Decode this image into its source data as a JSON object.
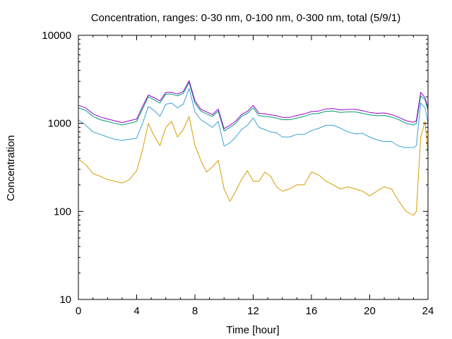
{
  "chart_data": {
    "type": "line",
    "title": "Concentration, ranges: 0-30 nm, 0-100 nm, 0-300 nm, total (5/9/1)",
    "xlabel": "Time [hour]",
    "ylabel": "Concentration",
    "xlim": [
      0,
      24
    ],
    "ylim": [
      10,
      10000
    ],
    "yscale": "log",
    "x_ticks": [
      0,
      4,
      8,
      12,
      16,
      20,
      24
    ],
    "x_tick_labels": [
      "0",
      "4",
      "8",
      "12",
      "16",
      "20",
      "24"
    ],
    "y_ticks": [
      10,
      100,
      1000,
      10000
    ],
    "y_tick_labels": [
      "10",
      "100",
      "1000",
      "10000"
    ],
    "grid": false,
    "legend": "none",
    "series": [
      {
        "color": "#d89c00",
        "x": [
          0,
          0.5,
          1,
          1.5,
          2,
          2.5,
          3,
          3.5,
          4,
          4.4,
          4.8,
          5.2,
          5.6,
          6,
          6.4,
          6.8,
          7.2,
          7.6,
          8,
          8.4,
          8.8,
          9.2,
          9.6,
          10,
          10.4,
          10.8,
          11.2,
          11.6,
          12,
          12.4,
          12.8,
          13.2,
          13.6,
          14,
          14.5,
          15,
          15.5,
          16,
          16.5,
          17,
          17.5,
          18,
          18.5,
          19,
          19.5,
          20,
          20.5,
          21,
          21.5,
          22,
          22.5,
          23,
          23.2,
          23.5,
          23.8,
          24
        ],
        "y": [
          390,
          340,
          270,
          250,
          230,
          220,
          210,
          230,
          290,
          500,
          1000,
          720,
          560,
          900,
          1050,
          700,
          850,
          1200,
          560,
          380,
          280,
          320,
          380,
          180,
          130,
          170,
          230,
          290,
          220,
          220,
          280,
          250,
          190,
          170,
          180,
          200,
          200,
          280,
          260,
          220,
          200,
          180,
          190,
          180,
          170,
          150,
          170,
          190,
          180,
          130,
          100,
          90,
          100,
          700,
          1050,
          450
        ]
      },
      {
        "color": "#3aa0d8",
        "x": [
          0,
          0.5,
          1,
          1.5,
          2,
          2.5,
          3,
          3.5,
          4,
          4.4,
          4.8,
          5.2,
          5.6,
          6,
          6.4,
          6.8,
          7.2,
          7.6,
          8,
          8.4,
          8.8,
          9.2,
          9.6,
          10,
          10.4,
          10.8,
          11.2,
          11.6,
          12,
          12.4,
          12.8,
          13.2,
          13.6,
          14,
          14.5,
          15,
          15.5,
          16,
          16.5,
          17,
          17.5,
          18,
          18.5,
          19,
          19.5,
          20,
          20.5,
          21,
          21.5,
          22,
          22.5,
          23,
          23.2,
          23.5,
          23.8,
          24
        ],
        "y": [
          1100,
          950,
          800,
          750,
          700,
          660,
          640,
          660,
          680,
          1000,
          1550,
          1400,
          1200,
          1650,
          1700,
          1500,
          1650,
          2500,
          1350,
          1100,
          1000,
          900,
          1050,
          550,
          600,
          700,
          850,
          950,
          1150,
          900,
          850,
          800,
          780,
          700,
          700,
          750,
          750,
          830,
          880,
          950,
          950,
          880,
          800,
          760,
          770,
          700,
          650,
          620,
          620,
          550,
          530,
          530,
          560,
          1700,
          1500,
          1000
        ]
      },
      {
        "color": "#009e73",
        "x": [
          0,
          0.5,
          1,
          1.5,
          2,
          2.5,
          3,
          3.5,
          4,
          4.4,
          4.8,
          5.2,
          5.6,
          6,
          6.4,
          6.8,
          7.2,
          7.6,
          8,
          8.4,
          8.8,
          9.2,
          9.6,
          10,
          10.4,
          10.8,
          11.2,
          11.6,
          12,
          12.4,
          12.8,
          13.2,
          13.6,
          14,
          14.5,
          15,
          15.5,
          16,
          16.5,
          17,
          17.5,
          18,
          18.5,
          19,
          19.5,
          20,
          20.5,
          21,
          21.5,
          22,
          22.5,
          23,
          23.2,
          23.5,
          23.8,
          24
        ],
        "y": [
          1500,
          1400,
          1200,
          1100,
          1050,
          1000,
          960,
          1000,
          1050,
          1450,
          2000,
          1850,
          1700,
          2150,
          2150,
          2050,
          2200,
          2900,
          1700,
          1380,
          1280,
          1200,
          1380,
          820,
          900,
          1000,
          1200,
          1300,
          1500,
          1220,
          1200,
          1180,
          1150,
          1100,
          1100,
          1150,
          1200,
          1280,
          1300,
          1370,
          1380,
          1330,
          1350,
          1350,
          1300,
          1250,
          1220,
          1230,
          1180,
          1100,
          1000,
          960,
          1000,
          2050,
          1850,
          1400
        ]
      },
      {
        "color": "#9400d3",
        "x": [
          0,
          0.5,
          1,
          1.5,
          2,
          2.5,
          3,
          3.5,
          4,
          4.4,
          4.8,
          5.2,
          5.6,
          6,
          6.4,
          6.8,
          7.2,
          7.6,
          8,
          8.4,
          8.8,
          9.2,
          9.6,
          10,
          10.4,
          10.8,
          11.2,
          11.6,
          12,
          12.4,
          12.8,
          13.2,
          13.6,
          14,
          14.5,
          15,
          15.5,
          16,
          16.5,
          17,
          17.5,
          18,
          18.5,
          19,
          19.5,
          20,
          20.5,
          21,
          21.5,
          22,
          22.5,
          23,
          23.2,
          23.5,
          23.8,
          24
        ],
        "y": [
          1600,
          1500,
          1280,
          1180,
          1120,
          1070,
          1020,
          1070,
          1120,
          1550,
          2100,
          1950,
          1800,
          2250,
          2250,
          2150,
          2300,
          3050,
          1800,
          1450,
          1350,
          1260,
          1450,
          870,
          950,
          1060,
          1260,
          1370,
          1600,
          1300,
          1280,
          1250,
          1220,
          1170,
          1170,
          1230,
          1280,
          1360,
          1380,
          1460,
          1470,
          1420,
          1440,
          1440,
          1390,
          1330,
          1300,
          1310,
          1260,
          1170,
          1070,
          1030,
          1070,
          2250,
          1950,
          1500
        ]
      }
    ]
  }
}
